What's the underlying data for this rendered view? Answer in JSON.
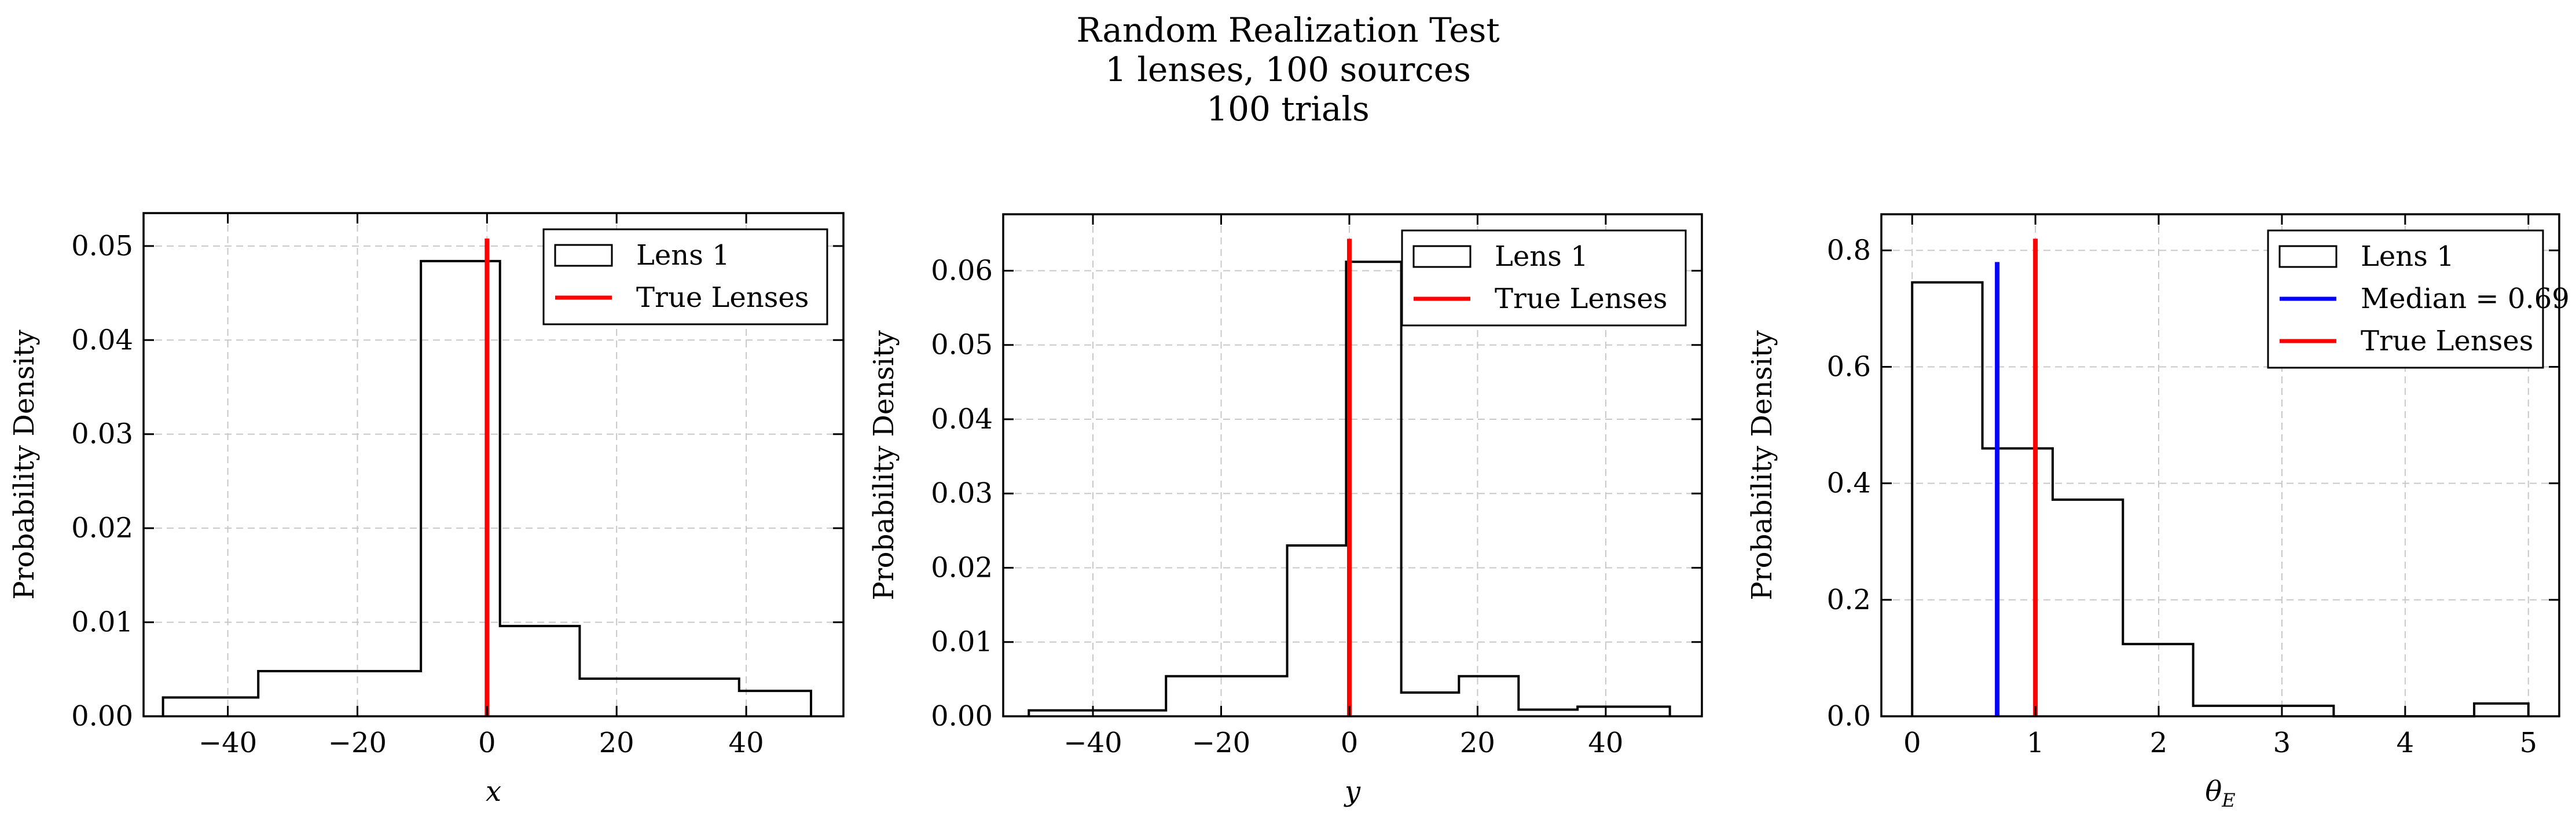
{
  "figure_title": [
    "Random Realization Test",
    "1 lenses, 100 sources",
    "100 trials"
  ],
  "colors": {
    "histogram": "#000000",
    "true_lenses": "#ff0000",
    "median": "#0000ff",
    "grid": "#c8c8c8"
  },
  "chart_data": [
    {
      "type": "histogram",
      "xlabel": "x",
      "ylabel": "Probability Density",
      "xlim": [
        -53,
        55
      ],
      "ylim": [
        0,
        0.0535
      ],
      "xticks": [
        -40,
        -20,
        0,
        20,
        40
      ],
      "xtick_labels": [
        "−40",
        "−20",
        "0",
        "20",
        "40"
      ],
      "yticks": [
        0,
        0.01,
        0.02,
        0.03,
        0.04,
        0.05
      ],
      "ytick_labels": [
        "0.00",
        "0.01",
        "0.02",
        "0.03",
        "0.04",
        "0.05"
      ],
      "bin_edges": [
        -50,
        -35.3,
        -22.6,
        -10.2,
        2.0,
        14.3,
        26.6,
        38.9,
        50
      ],
      "values": [
        0.002,
        0.0048,
        0.0048,
        0.0484,
        0.0096,
        0.004,
        0.004,
        0.0027
      ],
      "vlines": [
        {
          "x": 0,
          "ymax": 0.0508,
          "color": "#ff0000"
        }
      ],
      "grid": true,
      "legend_position": "top-right",
      "legend": [
        {
          "label": "Lens 1",
          "kind": "patch"
        },
        {
          "label": "True Lenses",
          "kind": "line",
          "color": "#ff0000"
        }
      ]
    },
    {
      "type": "histogram",
      "xlabel": "y",
      "ylabel": "Probability Density",
      "xlim": [
        -54,
        55
      ],
      "ylim": [
        0,
        0.0676
      ],
      "xticks": [
        -40,
        -20,
        0,
        20,
        40
      ],
      "xtick_labels": [
        "−40",
        "−20",
        "0",
        "20",
        "40"
      ],
      "yticks": [
        0,
        0.01,
        0.02,
        0.03,
        0.04,
        0.05,
        0.06
      ],
      "ytick_labels": [
        "0.00",
        "0.01",
        "0.02",
        "0.03",
        "0.04",
        "0.05",
        "0.06"
      ],
      "bin_edges": [
        -50,
        -39.3,
        -28.6,
        -17.8,
        -9.7,
        -0.5,
        8.1,
        17.1,
        26.4,
        35.6,
        50
      ],
      "values": [
        0.0008,
        0.0008,
        0.0054,
        0.0054,
        0.023,
        0.0612,
        0.0032,
        0.0054,
        0.0009,
        0.0013
      ],
      "vlines": [
        {
          "x": 0,
          "ymax": 0.0643,
          "color": "#ff0000"
        }
      ],
      "grid": true,
      "legend_position": "top-right",
      "legend": [
        {
          "label": "Lens 1",
          "kind": "patch"
        },
        {
          "label": "True Lenses",
          "kind": "line",
          "color": "#ff0000"
        }
      ]
    },
    {
      "type": "histogram",
      "xlabel": "θ",
      "xlabel_sub": "E",
      "ylabel": "Probability Density",
      "xlim": [
        -0.25,
        5.25
      ],
      "ylim": [
        0,
        0.862
      ],
      "xticks": [
        0,
        1,
        2,
        3,
        4,
        5
      ],
      "xtick_labels": [
        "0",
        "1",
        "2",
        "3",
        "4",
        "5"
      ],
      "yticks": [
        0,
        0.2,
        0.4,
        0.6,
        0.8
      ],
      "ytick_labels": [
        "0.0",
        "0.2",
        "0.4",
        "0.6",
        "0.8"
      ],
      "bin_edges": [
        0,
        0.57,
        1.14,
        1.71,
        2.28,
        2.85,
        3.42,
        3.99,
        4.56,
        5.0
      ],
      "values": [
        0.745,
        0.46,
        0.372,
        0.124,
        0.018,
        0.018,
        0.0,
        0.0,
        0.022
      ],
      "vlines": [
        {
          "x": 0.69,
          "ymax": 0.78,
          "color": "#0000ff"
        },
        {
          "x": 1.0,
          "ymax": 0.82,
          "color": "#ff0000"
        }
      ],
      "grid": true,
      "legend_position": "top-right",
      "legend": [
        {
          "label": "Lens 1",
          "kind": "patch"
        },
        {
          "label": "Median = 0.69",
          "kind": "line",
          "color": "#0000ff"
        },
        {
          "label": "True Lenses",
          "kind": "line",
          "color": "#ff0000"
        }
      ]
    }
  ]
}
